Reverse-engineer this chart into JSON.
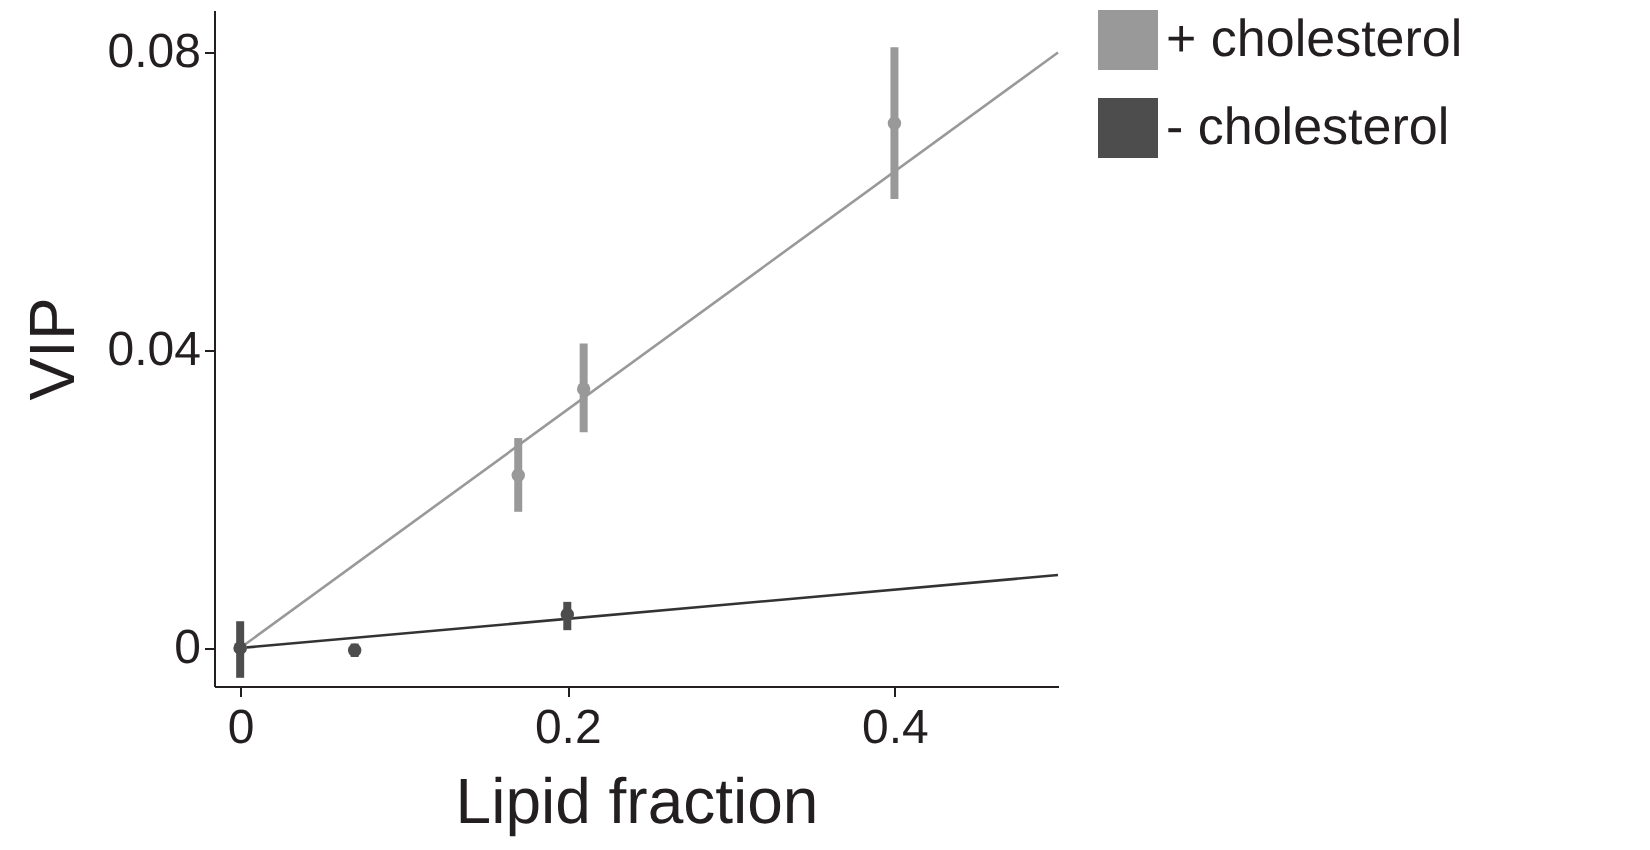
{
  "chart_data": {
    "type": "scatter",
    "xlabel": "Lipid fraction",
    "ylabel": "VIP",
    "xlim": [
      -0.016,
      0.5
    ],
    "ylim": [
      -0.0051,
      0.0857
    ],
    "xticks": [
      0,
      0.2,
      0.4
    ],
    "yticks": [
      0,
      0.04,
      0.08
    ],
    "grid": false,
    "legend": "top right",
    "marker": "circle",
    "series": [
      {
        "type": "line",
        "marker": "none",
        "color": "#999999",
        "x": [
          0,
          0.5
        ],
        "values": [
          0,
          0.08
        ]
      },
      {
        "type": "line",
        "marker": "none",
        "color": "#333333",
        "x": [
          0,
          0.5
        ],
        "values": [
          0,
          0.0098
        ]
      },
      {
        "name": "+ cholesterol",
        "color": "#999999",
        "x": [
          0,
          0.17,
          0.21,
          0.4
        ],
        "values": [
          0,
          0.0232,
          0.0348,
          0.0705
        ],
        "errors": [
          null,
          [
            0.0183,
            0.0282
          ],
          [
            0.029,
            0.0409
          ],
          [
            0.0603,
            0.0807
          ]
        ]
      },
      {
        "name": "- cholesterol",
        "color": "#4d4d4d",
        "x": [
          0,
          0.07,
          0.2
        ],
        "values": [
          0,
          -0.0003,
          0.0045
        ],
        "errors": [
          [
            -0.004,
            0.0036
          ],
          [
            -0.0012,
            0.0006
          ],
          [
            0.0024,
            0.0062
          ]
        ]
      }
    ]
  }
}
